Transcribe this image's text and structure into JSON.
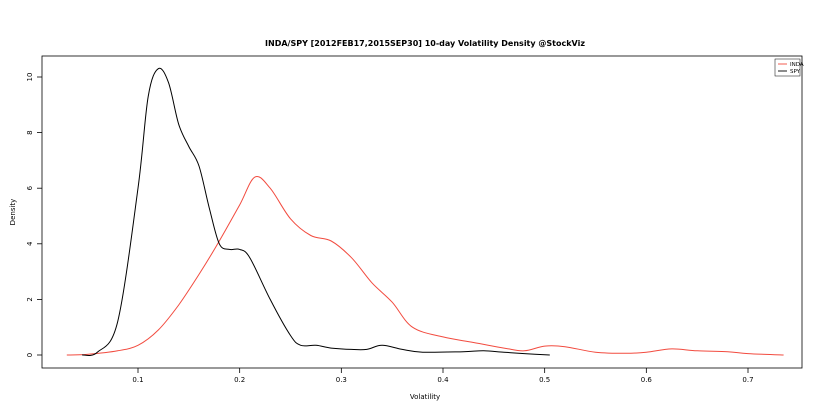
{
  "chart_data": {
    "type": "line",
    "title": "INDA/SPY [2012FEB17,2015SEP30] 10-day Volatility Density @StockViz",
    "xlabel": "Volatility",
    "ylabel": "Density",
    "xlim": [
      0.0,
      0.75
    ],
    "ylim": [
      0,
      10.5
    ],
    "x_ticks": [
      0.1,
      0.2,
      0.3,
      0.4,
      0.5,
      0.6,
      0.7
    ],
    "x_tick_labels": [
      "0.1",
      "0.2",
      "0.3",
      "0.4",
      "0.5",
      "0.6",
      "0.7"
    ],
    "y_ticks": [
      0,
      2,
      4,
      6,
      8,
      10
    ],
    "y_tick_labels": [
      "0",
      "2",
      "4",
      "6",
      "8",
      "10"
    ],
    "grid": false,
    "legend": {
      "placement": "top-right",
      "entries": [
        "INDA",
        "SPY"
      ]
    },
    "series": [
      {
        "name": "INDA",
        "color": "#f24b3f",
        "points": [
          [
            0.03,
            0.0
          ],
          [
            0.05,
            0.02
          ],
          [
            0.08,
            0.15
          ],
          [
            0.1,
            0.35
          ],
          [
            0.12,
            0.9
          ],
          [
            0.14,
            1.8
          ],
          [
            0.16,
            2.9
          ],
          [
            0.18,
            4.1
          ],
          [
            0.2,
            5.4
          ],
          [
            0.215,
            6.4
          ],
          [
            0.23,
            6.0
          ],
          [
            0.25,
            4.9
          ],
          [
            0.27,
            4.3
          ],
          [
            0.29,
            4.1
          ],
          [
            0.31,
            3.5
          ],
          [
            0.33,
            2.6
          ],
          [
            0.35,
            1.9
          ],
          [
            0.37,
            1.0
          ],
          [
            0.4,
            0.65
          ],
          [
            0.43,
            0.45
          ],
          [
            0.46,
            0.25
          ],
          [
            0.48,
            0.15
          ],
          [
            0.5,
            0.32
          ],
          [
            0.52,
            0.3
          ],
          [
            0.55,
            0.1
          ],
          [
            0.58,
            0.06
          ],
          [
            0.6,
            0.1
          ],
          [
            0.625,
            0.22
          ],
          [
            0.65,
            0.15
          ],
          [
            0.68,
            0.12
          ],
          [
            0.7,
            0.05
          ],
          [
            0.735,
            0.0
          ]
        ]
      },
      {
        "name": "SPY",
        "color": "#000000",
        "points": [
          [
            0.045,
            0.0
          ],
          [
            0.06,
            0.1
          ],
          [
            0.08,
            1.2
          ],
          [
            0.1,
            6.0
          ],
          [
            0.11,
            9.3
          ],
          [
            0.12,
            10.3
          ],
          [
            0.13,
            9.8
          ],
          [
            0.14,
            8.3
          ],
          [
            0.15,
            7.5
          ],
          [
            0.16,
            6.8
          ],
          [
            0.17,
            5.3
          ],
          [
            0.18,
            4.0
          ],
          [
            0.19,
            3.8
          ],
          [
            0.2,
            3.8
          ],
          [
            0.21,
            3.5
          ],
          [
            0.23,
            2.0
          ],
          [
            0.25,
            0.7
          ],
          [
            0.26,
            0.35
          ],
          [
            0.275,
            0.35
          ],
          [
            0.29,
            0.25
          ],
          [
            0.31,
            0.2
          ],
          [
            0.325,
            0.2
          ],
          [
            0.34,
            0.35
          ],
          [
            0.36,
            0.2
          ],
          [
            0.38,
            0.1
          ],
          [
            0.42,
            0.12
          ],
          [
            0.44,
            0.15
          ],
          [
            0.46,
            0.1
          ],
          [
            0.48,
            0.05
          ],
          [
            0.505,
            0.0
          ]
        ]
      }
    ]
  }
}
